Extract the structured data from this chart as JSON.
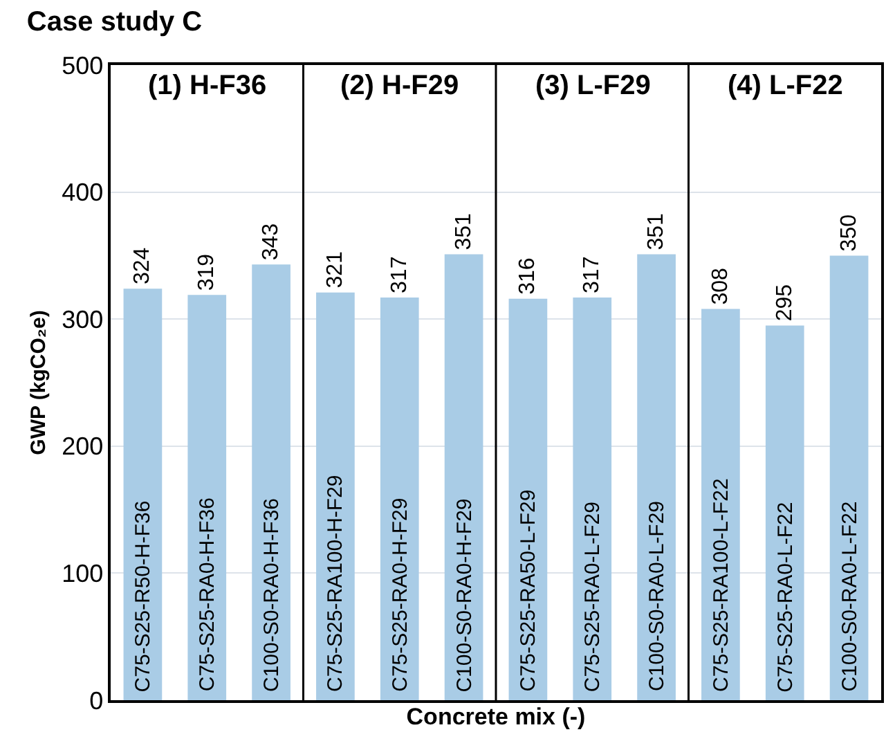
{
  "chart_data": {
    "type": "bar",
    "title": "Case study C",
    "xlabel": "Concrete mix (-)",
    "ylabel": "GWP (kgCO₂e)",
    "categories": [
      "C75-S25-R50-H-F36",
      "C75-S25-RA0-H-F36",
      "C100-S0-RA0-H-F36",
      "C75-S25-RA100-H-F29",
      "C75-S25-RA0-H-F29",
      "C100-S0-RA0-H-F29",
      "C75-S25-RA50-L-F29",
      "C75-S25-RA0-L-F29",
      "C100-S0-RA0-L-F29",
      "C75-S25-RA100-L-F22",
      "C75-S25-RA0-L-F22",
      "C100-S0-RA0-L-F22"
    ],
    "values": [
      324,
      319,
      343,
      321,
      317,
      351,
      316,
      317,
      351,
      308,
      295,
      350
    ],
    "color": "#a9cce6",
    "annotations": [
      "(1) H-F36",
      "(2) H-F29",
      "(3) L-F29",
      "(4) L-F22"
    ],
    "ylim": [
      0,
      500
    ],
    "yticks": [
      0,
      100,
      200,
      300,
      400,
      500
    ],
    "grid": "y",
    "data_labels": true,
    "legend": false
  }
}
